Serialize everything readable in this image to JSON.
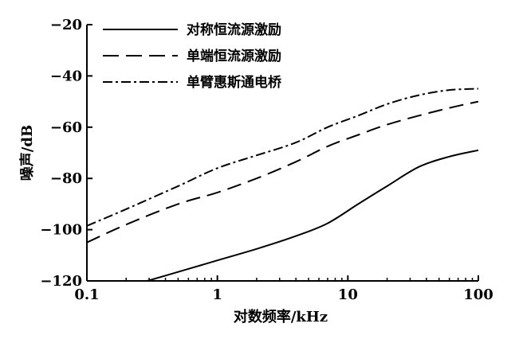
{
  "chart_data": {
    "type": "line",
    "x_scale": "log",
    "xlim": [
      0.1,
      100
    ],
    "ylim": [
      -120,
      -20
    ],
    "x_ticks": [
      0.1,
      1,
      10,
      100
    ],
    "x_tick_labels": [
      "0.1",
      "1",
      "10",
      "100"
    ],
    "y_ticks": [
      -120,
      -100,
      -80,
      -60,
      -40,
      -20
    ],
    "y_tick_labels": [
      "−120",
      "−100",
      "−80",
      "−60",
      "−40",
      "−20"
    ],
    "xlabel": "对数频率/kHz",
    "ylabel": "噪声/dB",
    "grid": false,
    "legend_position": "top-left",
    "series": [
      {
        "name": "对称恒流源激励",
        "dash": "solid",
        "x": [
          0.29,
          0.5,
          1,
          2,
          4,
          7,
          12,
          20,
          35,
          60,
          100
        ],
        "y": [
          -120,
          -116.5,
          -112,
          -107.5,
          -102.5,
          -97.5,
          -90,
          -83,
          -75.5,
          -71.5,
          -69
        ]
      },
      {
        "name": "单端恒流源激励",
        "dash": "dashed",
        "x": [
          0.1,
          0.2,
          0.5,
          1,
          2,
          4,
          7,
          12,
          20,
          35,
          60,
          100
        ],
        "y": [
          -105,
          -98,
          -90,
          -85.5,
          -80,
          -73.5,
          -67.5,
          -63,
          -59,
          -55.5,
          -52.5,
          -50
        ]
      },
      {
        "name": "单臂惠斯通电桥",
        "dash": "dashdot",
        "x": [
          0.1,
          0.2,
          0.5,
          1,
          2,
          4,
          7,
          12,
          20,
          35,
          60,
          100
        ],
        "y": [
          -98.5,
          -92,
          -83,
          -76,
          -71,
          -66,
          -60,
          -55.5,
          -51,
          -47.5,
          -45.5,
          -45
        ]
      }
    ]
  }
}
